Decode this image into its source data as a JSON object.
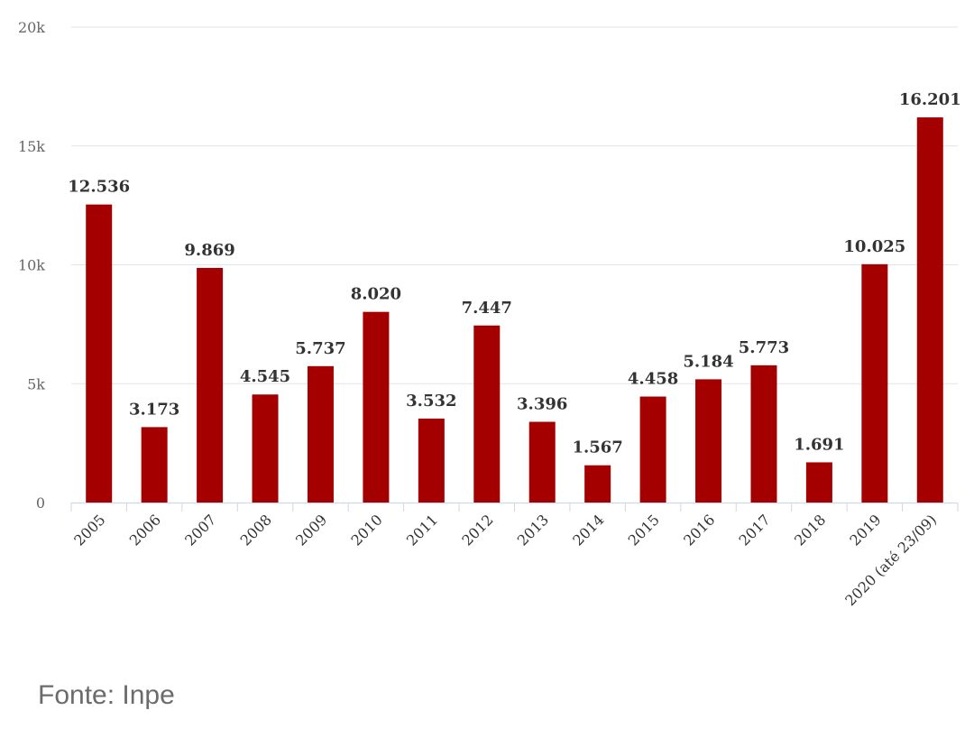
{
  "chart_data": {
    "type": "bar",
    "categories": [
      "2005",
      "2006",
      "2007",
      "2008",
      "2009",
      "2010",
      "2011",
      "2012",
      "2013",
      "2014",
      "2015",
      "2016",
      "2017",
      "2018",
      "2019",
      "2020 (até 23/09)"
    ],
    "values": [
      12536,
      3173,
      9869,
      4545,
      5737,
      8020,
      3532,
      7447,
      3396,
      1567,
      4458,
      5184,
      5773,
      1691,
      10025,
      16201
    ],
    "data_labels": [
      "12.536",
      "3.173",
      "9.869",
      "4.545",
      "5.737",
      "8.020",
      "3.532",
      "7.447",
      "3.396",
      "1.567",
      "4.458",
      "5.184",
      "5.773",
      "1.691",
      "10.025",
      "16.201"
    ],
    "y_ticks": [
      0,
      5000,
      10000,
      15000,
      20000
    ],
    "y_tick_labels": [
      "0",
      "5k",
      "10k",
      "15k",
      "20k"
    ],
    "ylim": [
      0,
      20000
    ],
    "title": "",
    "xlabel": "",
    "ylabel": "",
    "grid": true,
    "bar_color": "#a50000"
  },
  "source": "Fonte: Inpe"
}
